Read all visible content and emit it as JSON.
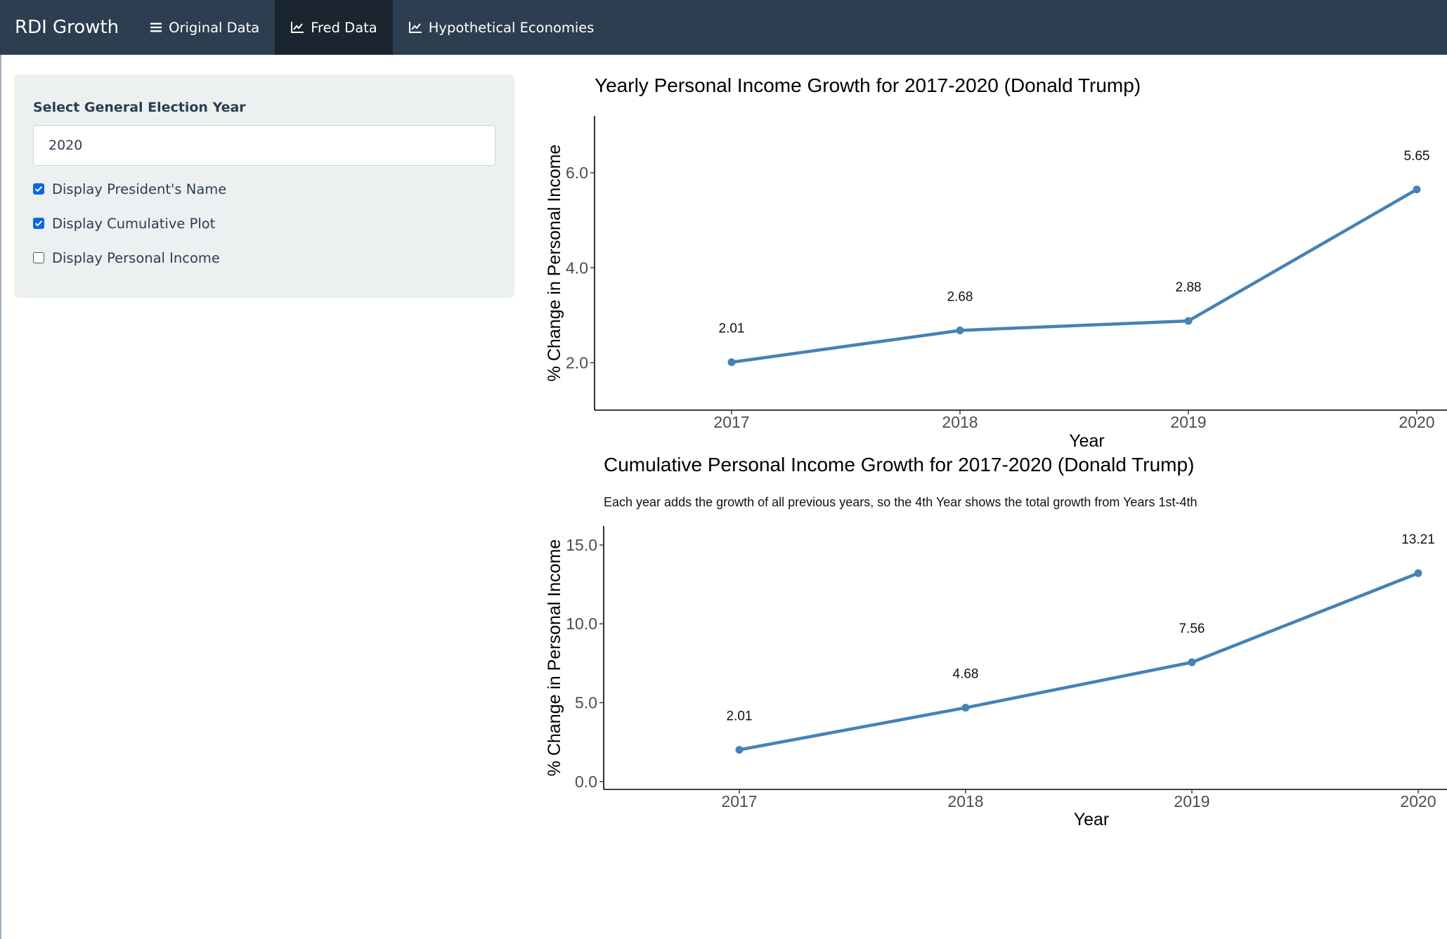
{
  "navbar": {
    "brand": "RDI Growth",
    "tabs": [
      {
        "label": "Original Data",
        "icon": "bars-icon",
        "active": false
      },
      {
        "label": "Fred Data",
        "icon": "line-chart-icon",
        "active": true
      },
      {
        "label": "Hypothetical Economies",
        "icon": "line-chart-icon",
        "active": false
      }
    ]
  },
  "sidebar": {
    "select_label": "Select General Election Year",
    "select_value": "2020",
    "checkboxes": [
      {
        "label": "Display President's Name",
        "checked": true
      },
      {
        "label": "Display Cumulative Plot",
        "checked": true
      },
      {
        "label": "Display Personal Income",
        "checked": false
      }
    ]
  },
  "colors": {
    "navbar": "#2c3e50",
    "navbar_active": "#1a252f",
    "line": "#4682b4",
    "checkbox": "#0b66e6"
  },
  "chart_data": [
    {
      "type": "line",
      "title": "Yearly Personal Income Growth for 2017-2020 (Donald Trump)",
      "subtitle": "",
      "xlabel": "Year",
      "ylabel": "% Change in Personal Income",
      "x": [
        "2017",
        "2018",
        "2019",
        "2020"
      ],
      "values": [
        2.01,
        2.68,
        2.88,
        5.65
      ],
      "data_labels": [
        "2.01",
        "2.68",
        "2.88",
        "5.65"
      ],
      "yticks": [
        "2.0",
        "4.0",
        "6.0"
      ],
      "ylim": [
        1.0,
        7.2
      ],
      "grid": false,
      "color": "#4682b4"
    },
    {
      "type": "line",
      "title": "Cumulative Personal Income Growth for 2017-2020 (Donald Trump)",
      "subtitle": "Each year adds the growth of all previous years, so the 4th Year shows the total growth from Years 1st-4th",
      "xlabel": "Year",
      "ylabel": "% Change in Personal Income",
      "x": [
        "2017",
        "2018",
        "2019",
        "2020"
      ],
      "values": [
        2.01,
        4.68,
        7.56,
        13.21
      ],
      "data_labels": [
        "2.01",
        "4.68",
        "7.56",
        "13.21"
      ],
      "yticks": [
        "0.0",
        "5.0",
        "10.0",
        "15.0"
      ],
      "ylim": [
        -0.5,
        16.2
      ],
      "grid": false,
      "color": "#4682b4"
    }
  ]
}
